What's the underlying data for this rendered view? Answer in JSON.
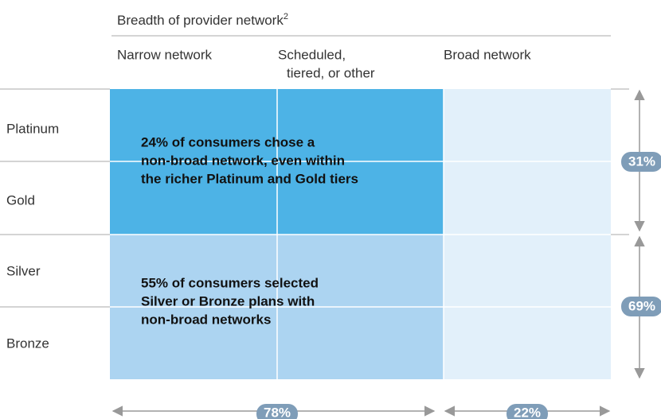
{
  "header": {
    "title": "Breadth of provider network",
    "footnote_mark": "2"
  },
  "columns": [
    {
      "lines": [
        "Narrow network"
      ]
    },
    {
      "lines": [
        "Scheduled,",
        "tiered, or other"
      ]
    },
    {
      "lines": [
        "Broad network"
      ]
    }
  ],
  "rows": [
    "Platinum",
    "Gold",
    "Silver",
    "Bronze"
  ],
  "annotations": [
    {
      "lines": [
        "24% of consumers chose a",
        "non-broad network, even within",
        "the richer Platinum and Gold tiers"
      ]
    },
    {
      "lines": [
        "55% of consumers selected",
        "Silver or Bronze plans with",
        "non-broad networks"
      ]
    }
  ],
  "row_shares": [
    "31%",
    "69%"
  ],
  "column_shares": [
    "78%",
    "22%"
  ]
}
